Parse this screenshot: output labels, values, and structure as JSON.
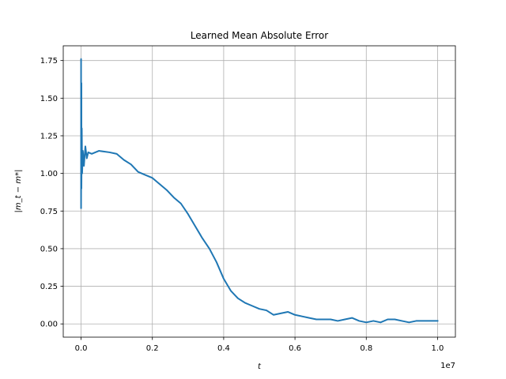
{
  "chart_data": {
    "type": "line",
    "title": "Learned Mean Absolute Error",
    "xlabel": "t",
    "ylabel": "|m_t − m*|",
    "x_offset_label": "1e7",
    "xlim": [
      -0.05,
      1.05
    ],
    "ylim": [
      -0.088,
      1.848
    ],
    "x_ticks": [
      0.0,
      0.2,
      0.4,
      0.6,
      0.8,
      1.0
    ],
    "x_tick_labels": [
      "0.0",
      "0.2",
      "0.4",
      "0.6",
      "0.8",
      "1.0"
    ],
    "y_ticks": [
      0.0,
      0.25,
      0.5,
      0.75,
      1.0,
      1.25,
      1.5,
      1.75
    ],
    "y_tick_labels": [
      "0.00",
      "0.25",
      "0.50",
      "0.75",
      "1.00",
      "1.25",
      "1.50",
      "1.75"
    ],
    "grid": true,
    "legend": "none",
    "series": [
      {
        "color": "#1f77b4",
        "x": [
          0.0,
          0.0,
          0.0,
          0.001,
          0.001,
          0.002,
          0.003,
          0.005,
          0.008,
          0.012,
          0.016,
          0.02,
          0.03,
          0.05,
          0.08,
          0.1,
          0.12,
          0.14,
          0.16,
          0.18,
          0.2,
          0.22,
          0.24,
          0.26,
          0.28,
          0.3,
          0.32,
          0.34,
          0.36,
          0.38,
          0.4,
          0.42,
          0.44,
          0.46,
          0.48,
          0.5,
          0.52,
          0.54,
          0.56,
          0.58,
          0.6,
          0.62,
          0.64,
          0.66,
          0.68,
          0.7,
          0.72,
          0.74,
          0.76,
          0.78,
          0.8,
          0.82,
          0.84,
          0.86,
          0.88,
          0.9,
          0.92,
          0.94,
          0.96,
          0.98,
          1.0
        ],
        "y": [
          0.77,
          1.76,
          0.8,
          1.6,
          0.9,
          1.3,
          1.0,
          1.15,
          1.05,
          1.18,
          1.1,
          1.14,
          1.13,
          1.15,
          1.14,
          1.13,
          1.09,
          1.06,
          1.01,
          0.99,
          0.97,
          0.93,
          0.89,
          0.84,
          0.8,
          0.73,
          0.65,
          0.57,
          0.5,
          0.41,
          0.3,
          0.22,
          0.17,
          0.14,
          0.12,
          0.1,
          0.09,
          0.06,
          0.07,
          0.08,
          0.06,
          0.05,
          0.04,
          0.03,
          0.03,
          0.03,
          0.02,
          0.03,
          0.04,
          0.02,
          0.01,
          0.02,
          0.01,
          0.03,
          0.03,
          0.02,
          0.01,
          0.02,
          0.02,
          0.02,
          0.02
        ]
      }
    ]
  }
}
